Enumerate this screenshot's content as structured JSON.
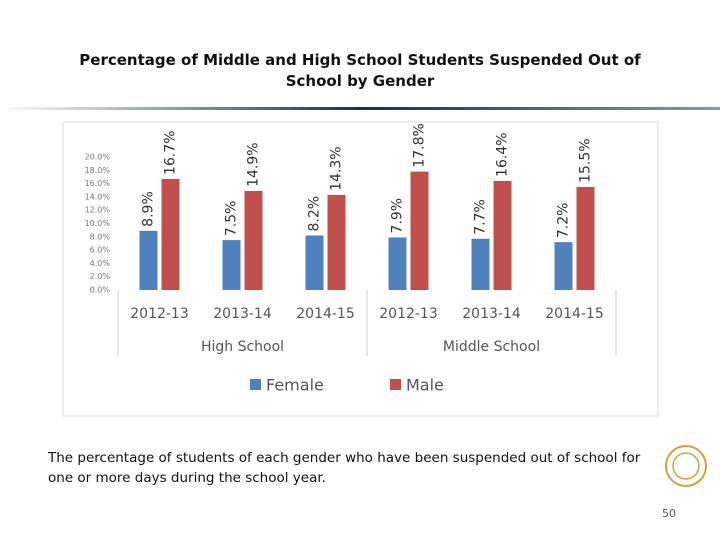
{
  "chart_data": {
    "type": "bar",
    "title": "Percentage of Middle and High School Students Suspended Out of School by Gender",
    "categories": [
      "2012-13",
      "2013-14",
      "2014-15",
      "2012-13",
      "2013-14",
      "2014-15"
    ],
    "group_labels": [
      "High School",
      "Middle School"
    ],
    "series": [
      {
        "name": "Female",
        "color": "#4f81bd",
        "values": [
          8.9,
          7.5,
          8.2,
          7.9,
          7.7,
          7.2
        ],
        "value_labels": [
          "8.9%",
          "7.5%",
          "8.2%",
          "7.9%",
          "7.7%",
          "7.2%"
        ]
      },
      {
        "name": "Male",
        "color": "#c0504d",
        "values": [
          16.7,
          14.9,
          14.3,
          17.8,
          16.4,
          15.5
        ],
        "value_labels": [
          "16.7%",
          "14.9%",
          "14.3%",
          "17.8%",
          "16.4%",
          "15.5%"
        ]
      }
    ],
    "ylim": [
      0,
      20
    ],
    "yticks": [
      {
        "value": 0,
        "label": "0.0%"
      },
      {
        "value": 2,
        "label": "2.0%"
      },
      {
        "value": 4,
        "label": "4.0%"
      },
      {
        "value": 6,
        "label": "6.0%"
      },
      {
        "value": 8,
        "label": "8.0%"
      },
      {
        "value": 10,
        "label": "10.0%"
      },
      {
        "value": 12,
        "label": "12.0%"
      },
      {
        "value": 14,
        "label": "14.0%"
      },
      {
        "value": 16,
        "label": "16.0%"
      },
      {
        "value": 18,
        "label": "18.0%"
      },
      {
        "value": 20,
        "label": "20.0%"
      }
    ],
    "grid": false
  },
  "caption": "The percentage of students of each gender who have been suspended out of school for one or more days during the school year.",
  "page_number": "50"
}
